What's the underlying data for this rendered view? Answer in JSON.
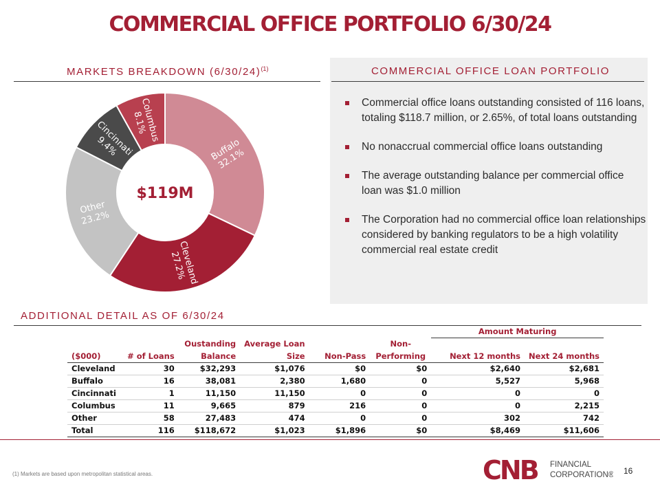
{
  "title": "COMMERCIAL OFFICE PORTFOLIO 6/30/24",
  "markets": {
    "heading": "MARKETS BREAKDOWN (6/30/24)",
    "heading_sup": "(1)",
    "center_value": "$119M"
  },
  "chart_data": {
    "type": "pie",
    "title": "MARKETS BREAKDOWN (6/30/24)",
    "center_label": "$119M",
    "slices": [
      {
        "name": "Buffalo",
        "value": 32.1,
        "label": "32.1%",
        "color": "#d08a95"
      },
      {
        "name": "Cleveland",
        "value": 27.2,
        "label": "27.2%",
        "color": "#a31f34"
      },
      {
        "name": "Other",
        "value": 23.2,
        "label": "23.2%",
        "color": "#c3c3c3"
      },
      {
        "name": "Cincinnati",
        "value": 9.4,
        "label": "9.4%",
        "color": "#4a4a4a"
      },
      {
        "name": "Columbus",
        "value": 8.1,
        "label": "8.1%",
        "color": "#b8404f"
      }
    ]
  },
  "portfolio": {
    "heading": "COMMERCIAL OFFICE LOAN PORTFOLIO",
    "bullets": [
      "Commercial office loans outstanding consisted of 116 loans, totaling $118.7 million, or 2.65%, of total loans outstanding",
      "No nonaccrual commercial office loans outstanding",
      "The average outstanding balance per commercial office loan was $1.0 million",
      "The Corporation had no commercial office loan relationships considered by banking regulators to be a high volatility commercial real estate credit"
    ]
  },
  "detail": {
    "heading": "ADDITIONAL DETAIL AS OF 6/30/24",
    "group_header": "Amount Maturing",
    "headers_row1": [
      "",
      "",
      "Oustanding",
      "Average Loan",
      "",
      "Non-",
      "",
      ""
    ],
    "headers_row2": [
      "($000)",
      "# of Loans",
      "Balance",
      "Size",
      "Non-Pass",
      "Performing",
      "Next 12 months",
      "Next 24 months"
    ],
    "rows": [
      [
        "Cleveland",
        "30",
        "$32,293",
        "$1,076",
        "$0",
        "$0",
        "$2,640",
        "$2,681"
      ],
      [
        "Buffalo",
        "16",
        "38,081",
        "2,380",
        "1,680",
        "0",
        "5,527",
        "5,968"
      ],
      [
        "Cincinnati",
        "1",
        "11,150",
        "11,150",
        "0",
        "0",
        "0",
        "0"
      ],
      [
        "Columbus",
        "11",
        "9,665",
        "879",
        "216",
        "0",
        "0",
        "2,215"
      ],
      [
        "Other",
        "58",
        "27,483",
        "474",
        "0",
        "0",
        "302",
        "742"
      ]
    ],
    "total": [
      "Total",
      "116",
      "$118,672",
      "$1,023",
      "$1,896",
      "$0",
      "$8,469",
      "$11,606"
    ]
  },
  "footer": {
    "footnote": "(1) Markets are based upon metropolitan statistical areas.",
    "page_number": "16",
    "logo_text": "CNB",
    "logo_line1": "FINANCIAL",
    "logo_line2": "CORPORATION®"
  },
  "colors": {
    "brand": "#a31f34",
    "panel": "#efefef"
  }
}
